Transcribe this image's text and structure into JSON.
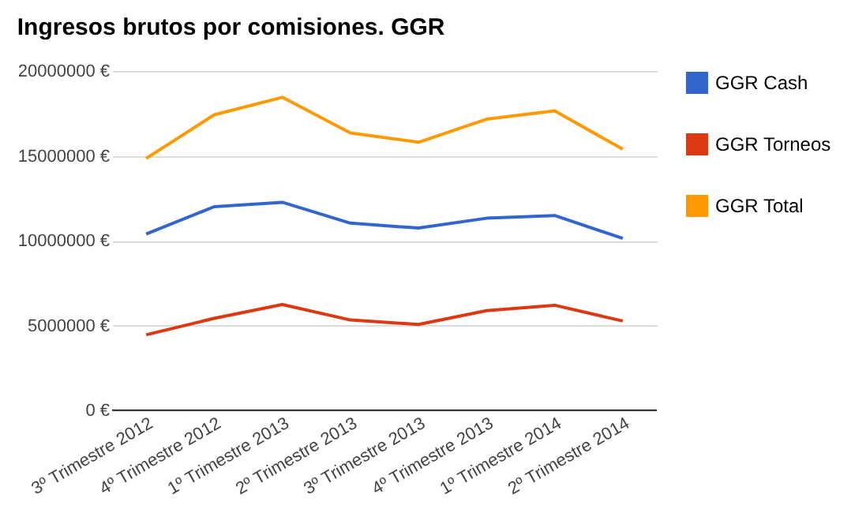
{
  "chart_data": {
    "type": "line",
    "title": "Ingresos brutos por comisiones. GGR",
    "categories": [
      "3º Trimestre 2012",
      "4º Trimestre 2012",
      "1º Trimestre 2013",
      "2º Trimestre 2013",
      "3º Trimestre 2013",
      "4º Trimestre 2013",
      "1º Trimestre 2014",
      "2º Trimestre 2014"
    ],
    "series": [
      {
        "name": "GGR Cash",
        "color": "#3366cc",
        "values": [
          10390000,
          12000000,
          12260000,
          11030000,
          10740000,
          11320000,
          11480000,
          10130000
        ]
      },
      {
        "name": "GGR Torneos",
        "color": "#dc3912",
        "values": [
          4450000,
          5420000,
          6230000,
          5320000,
          5060000,
          5870000,
          6190000,
          5260000
        ]
      },
      {
        "name": "GGR Total",
        "color": "#ff9900",
        "values": [
          14840000,
          17420000,
          18450000,
          16350000,
          15800000,
          17160000,
          17650000,
          15390000
        ]
      }
    ],
    "ylim": [
      0,
      20000000
    ],
    "yticks": [
      {
        "value": 0,
        "label": "0 €"
      },
      {
        "value": 5000000,
        "label": "5000000 €"
      },
      {
        "value": 10000000,
        "label": "10000000 €"
      },
      {
        "value": 15000000,
        "label": "15000000 €"
      },
      {
        "value": 20000000,
        "label": "20000000 €"
      }
    ],
    "grid": "y",
    "legend": "top right",
    "marker": "none",
    "line_style": "solid"
  }
}
